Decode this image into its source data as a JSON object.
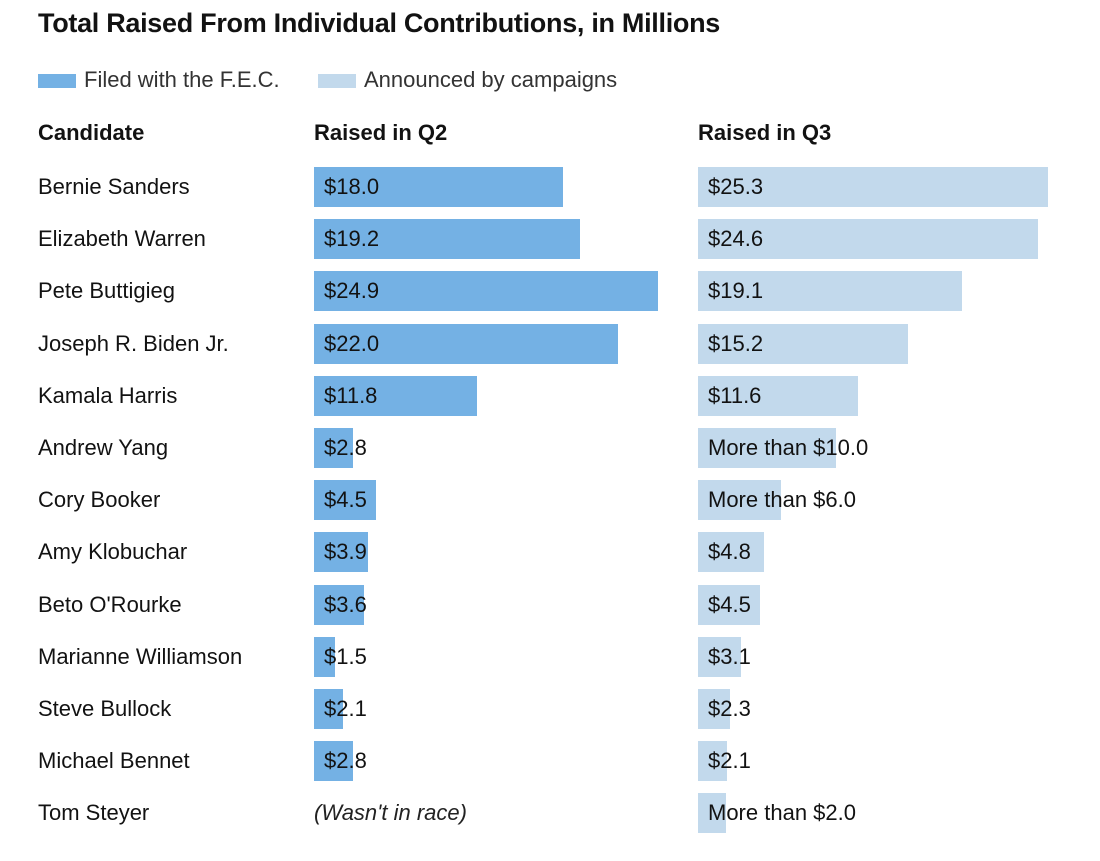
{
  "chart_data": {
    "type": "bar",
    "title": "Total Raised From Individual Contributions, in Millions",
    "legend": [
      {
        "label": "Filed with the F.E.C.",
        "color": "#74b1e4"
      },
      {
        "label": "Announced by campaigns",
        "color": "#c2d9ec"
      }
    ],
    "column_headers": [
      "Candidate",
      "Raised in Q2",
      "Raised in Q3"
    ],
    "categories": [
      "Bernie Sanders",
      "Elizabeth Warren",
      "Pete Buttigieg",
      "Joseph R. Biden Jr.",
      "Kamala Harris",
      "Andrew Yang",
      "Cory Booker",
      "Amy Klobuchar",
      "Beto O'Rourke",
      "Marianne Williamson",
      "Steve Bullock",
      "Michael Bennet",
      "Tom Steyer"
    ],
    "series": [
      {
        "name": "Raised in Q2",
        "color": "#74b1e4",
        "values": [
          18.0,
          19.2,
          24.9,
          22.0,
          11.8,
          2.8,
          4.5,
          3.9,
          3.6,
          1.5,
          2.1,
          2.8,
          null
        ],
        "labels": [
          "$18.0",
          "$19.2",
          "$24.9",
          "$22.0",
          "$11.8",
          "$2.8",
          "$4.5",
          "$3.9",
          "$3.6",
          "$1.5",
          "$2.1",
          "$2.8",
          "(Wasn't in race)"
        ]
      },
      {
        "name": "Raised in Q3",
        "color": "#c2d9ec",
        "values": [
          25.3,
          24.6,
          19.1,
          15.2,
          11.6,
          10.0,
          6.0,
          4.8,
          4.5,
          3.1,
          2.3,
          2.1,
          2.0
        ],
        "labels": [
          "$25.3",
          "$24.6",
          "$19.1",
          "$15.2",
          "$11.6",
          "More than $10.0",
          "More than $6.0",
          "$4.8",
          "$4.5",
          "$3.1",
          "$2.3",
          "$2.1",
          "More than $2.0"
        ]
      }
    ],
    "xlim": [
      0,
      25.3
    ]
  }
}
